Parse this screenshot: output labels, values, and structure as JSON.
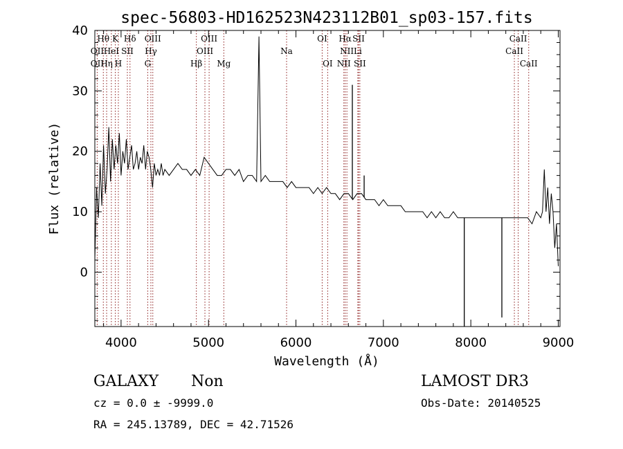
{
  "chart_data": {
    "type": "line",
    "title": "spec-56803-HD162523N423112B01_sp03-157.fits",
    "xlabel": "Wavelength (Å)",
    "ylabel": "Flux (relative)",
    "xlim": [
      3700,
      9020
    ],
    "ylim": [
      -9,
      40
    ],
    "x_ticks": [
      4000,
      5000,
      6000,
      7000,
      8000,
      9000
    ],
    "y_ticks": [
      0,
      10,
      20,
      30,
      40
    ],
    "grid": false,
    "series": [
      {
        "x": [
          3700,
          3720,
          3740,
          3760,
          3780,
          3800,
          3820,
          3840,
          3860,
          3880,
          3900,
          3920,
          3940,
          3960,
          3980,
          4000,
          4020,
          4040,
          4060,
          4080,
          4100,
          4120,
          4140,
          4160,
          4180,
          4200,
          4220,
          4240,
          4260,
          4280,
          4300,
          4320,
          4340,
          4360,
          4380,
          4400,
          4420,
          4440,
          4460,
          4480,
          4500,
          4550,
          4600,
          4650,
          4700,
          4750,
          4800,
          4850,
          4900,
          4950,
          5000,
          5050,
          5100,
          5150,
          5200,
          5250,
          5300,
          5350,
          5400,
          5450,
          5500,
          5550,
          5577,
          5600,
          5650,
          5700,
          5750,
          5800,
          5850,
          5900,
          5950,
          6000,
          6050,
          6100,
          6150,
          6200,
          6250,
          6300,
          6350,
          6400,
          6450,
          6500,
          6550,
          6600,
          6650,
          6700,
          6750,
          6800,
          6850,
          6900,
          6950,
          7000,
          7050,
          7100,
          7150,
          7200,
          7250,
          7300,
          7350,
          7400,
          7450,
          7500,
          7550,
          7600,
          7650,
          7700,
          7750,
          7800,
          7850,
          7900,
          7950,
          8000,
          8050,
          8100,
          8150,
          8200,
          8250,
          8300,
          8350,
          8400,
          8450,
          8500,
          8550,
          8600,
          8650,
          8700,
          8750,
          8800,
          8820,
          8840,
          8860,
          8880,
          8900,
          8920,
          8940,
          8960,
          8980,
          9000
        ],
        "y": [
          2,
          14,
          9,
          18,
          11,
          21,
          13,
          17,
          24,
          15,
          22,
          17,
          21,
          18,
          23,
          16,
          20,
          18,
          22,
          17,
          19,
          21,
          17,
          18,
          20,
          17,
          19,
          18,
          21,
          17,
          20,
          19,
          17,
          14,
          18,
          16,
          17,
          16,
          18,
          16,
          17,
          16,
          17,
          18,
          17,
          17,
          16,
          17,
          16,
          19,
          18,
          17,
          16,
          16,
          17,
          17,
          16,
          17,
          15,
          16,
          16,
          15,
          39,
          15,
          16,
          15,
          15,
          15,
          15,
          14,
          15,
          14,
          14,
          14,
          14,
          13,
          14,
          13,
          14,
          13,
          13,
          12,
          13,
          13,
          12,
          13,
          13,
          12,
          12,
          12,
          11,
          12,
          11,
          11,
          11,
          11,
          10,
          10,
          10,
          10,
          10,
          9,
          10,
          9,
          10,
          9,
          9,
          10,
          9,
          9,
          9,
          9,
          9,
          9,
          9,
          9,
          9,
          9,
          9,
          9,
          9,
          9,
          9,
          9,
          9,
          8,
          10,
          9,
          10,
          17,
          10,
          14,
          8,
          13,
          10,
          4,
          8,
          1
        ]
      }
    ],
    "features": [
      {
        "x": 5577,
        "y": 39
      },
      {
        "x": 6645,
        "y": 31
      },
      {
        "x": 6780,
        "y": 16
      },
      {
        "x": 7925,
        "y": -9
      },
      {
        "x": 8355,
        "y": -7.5
      }
    ],
    "spectral_lines": [
      {
        "label": "OII",
        "x": 3727,
        "row": 2
      },
      {
        "label": "OII",
        "x": 3727,
        "row": 3
      },
      {
        "label": "Hθ",
        "x": 3797,
        "row": 1
      },
      {
        "label": "Hη",
        "x": 3835,
        "row": 3
      },
      {
        "label": "HeI",
        "x": 3889,
        "row": 2
      },
      {
        "label": "K",
        "x": 3934,
        "row": 1
      },
      {
        "label": "H",
        "x": 3969,
        "row": 3
      },
      {
        "label": "SII",
        "x": 4072,
        "row": 2
      },
      {
        "label": "Hδ",
        "x": 4102,
        "row": 1
      },
      {
        "label": "OIII",
        "x": 4363,
        "row": 1
      },
      {
        "label": "Hγ",
        "x": 4341,
        "row": 2
      },
      {
        "label": "G",
        "x": 4305,
        "row": 3
      },
      {
        "label": "OIII",
        "x": 5007,
        "row": 1
      },
      {
        "label": "OIII",
        "x": 4959,
        "row": 2
      },
      {
        "label": "Hβ",
        "x": 4861,
        "row": 3
      },
      {
        "label": "Mg",
        "x": 5175,
        "row": 3
      },
      {
        "label": "Na",
        "x": 5893,
        "row": 2
      },
      {
        "label": "OI",
        "x": 6300,
        "row": 1
      },
      {
        "label": "OI",
        "x": 6363,
        "row": 3
      },
      {
        "label": "Hα",
        "x": 6563,
        "row": 1
      },
      {
        "label": "SII",
        "x": 6716,
        "row": 1
      },
      {
        "label": "NII",
        "x": 6583,
        "row": 2
      },
      {
        "label": "Li",
        "x": 6708,
        "row": 2
      },
      {
        "label": "NII",
        "x": 6548,
        "row": 3
      },
      {
        "label": "SII",
        "x": 6731,
        "row": 3
      },
      {
        "label": "CaII",
        "x": 8542,
        "row": 1
      },
      {
        "label": "CaII",
        "x": 8498,
        "row": 2
      },
      {
        "label": "CaII",
        "x": 8662,
        "row": 3
      }
    ],
    "info": {
      "class": "GALAXY",
      "subclass": "Non",
      "cz_line": "cz = 0.0 ± -9999.0",
      "coords_line": "RA = 245.13789, DEC =  42.71526",
      "survey": "LAMOST DR3",
      "obs_date": "Obs-Date: 20140525"
    },
    "colors": {
      "spectrum": "#000000",
      "line_markers": "#8b1a1a",
      "axes": "#000000"
    }
  }
}
